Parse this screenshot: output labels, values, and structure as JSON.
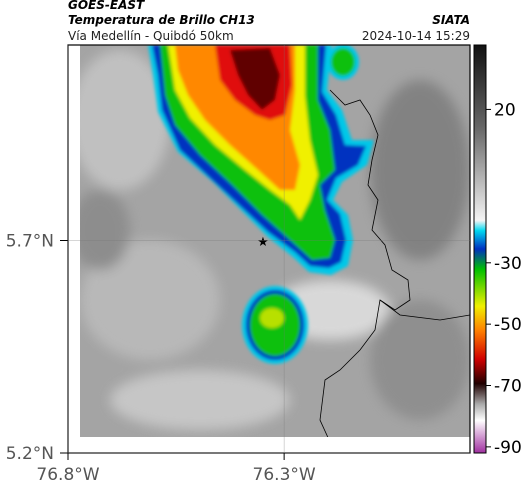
{
  "header": {
    "title": "GOES-EAST",
    "subtitle": "Temperatura de Brillo CH13",
    "route": "Vía Medellín - Quibdó 50km",
    "source": "SIATA",
    "timestamp": "2024-10-14 15:29"
  },
  "map": {
    "xlim": [
      -76.8,
      -75.87
    ],
    "ylim": [
      5.2,
      6.16
    ],
    "xticks": [
      {
        "value": -76.8,
        "label": "76.8°W"
      },
      {
        "value": -76.3,
        "label": "76.3°W"
      }
    ],
    "yticks": [
      {
        "value": 5.2,
        "label": "5.2°N"
      },
      {
        "value": 5.7,
        "label": "5.7°N"
      }
    ],
    "grid": true,
    "colorbar": {
      "lim": [
        -92,
        41
      ],
      "ticks": [
        20,
        -30,
        -50,
        -70,
        -90
      ]
    }
  }
}
